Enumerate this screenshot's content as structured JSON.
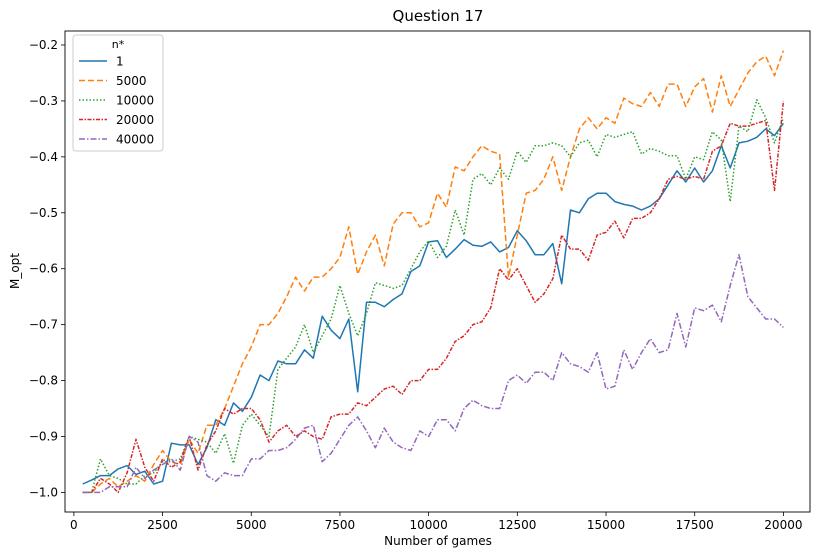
{
  "chart_data": {
    "type": "line",
    "title": "Question 17",
    "xlabel": "Number of games",
    "ylabel": "M_opt",
    "xlim": [
      -250,
      20750
    ],
    "ylim": [
      -1.035,
      -0.175
    ],
    "xticks": [
      0,
      2500,
      5000,
      7500,
      10000,
      12500,
      15000,
      17500,
      20000
    ],
    "yticks": [
      -1.0,
      -0.9,
      -0.8,
      -0.7,
      -0.6,
      -0.5,
      -0.4,
      -0.3,
      -0.2
    ],
    "xtick_labels": [
      "0",
      "2500",
      "5000",
      "7500",
      "10000",
      "12500",
      "15000",
      "17500",
      "20000"
    ],
    "ytick_labels": [
      "−1.0",
      "−0.9",
      "−0.8",
      "−0.7",
      "−0.6",
      "−0.5",
      "−0.4",
      "−0.3",
      "−0.2"
    ],
    "grid": false,
    "legend": {
      "title": "n*",
      "placement": "top-left"
    },
    "x": [
      250,
      500,
      750,
      1000,
      1250,
      1500,
      1750,
      2000,
      2250,
      2500,
      2750,
      3000,
      3250,
      3500,
      3750,
      4000,
      4250,
      4500,
      4750,
      5000,
      5250,
      5500,
      5750,
      6000,
      6250,
      6500,
      6750,
      7000,
      7250,
      7500,
      7750,
      8000,
      8250,
      8500,
      8750,
      9000,
      9250,
      9500,
      9750,
      10000,
      10250,
      10500,
      10750,
      11000,
      11250,
      11500,
      11750,
      12000,
      12250,
      12500,
      12750,
      13000,
      13250,
      13500,
      13750,
      14000,
      14250,
      14500,
      14750,
      15000,
      15250,
      15500,
      15750,
      16000,
      16250,
      16500,
      16750,
      17000,
      17250,
      17500,
      17750,
      18000,
      18250,
      18500,
      18750,
      19000,
      19250,
      19500,
      19750,
      20000
    ],
    "series": [
      {
        "name": "1",
        "color": "#1f77b4",
        "dash": "solid",
        "values": [
          -0.985,
          -0.978,
          -0.97,
          -0.97,
          -0.958,
          -0.952,
          -0.968,
          -0.962,
          -0.985,
          -0.98,
          -0.912,
          -0.915,
          -0.915,
          -0.95,
          -0.92,
          -0.87,
          -0.88,
          -0.84,
          -0.855,
          -0.83,
          -0.79,
          -0.8,
          -0.765,
          -0.77,
          -0.77,
          -0.745,
          -0.76,
          -0.685,
          -0.71,
          -0.725,
          -0.69,
          -0.82,
          -0.66,
          -0.66,
          -0.668,
          -0.655,
          -0.645,
          -0.605,
          -0.595,
          -0.552,
          -0.55,
          -0.58,
          -0.565,
          -0.548,
          -0.558,
          -0.56,
          -0.552,
          -0.57,
          -0.562,
          -0.532,
          -0.55,
          -0.575,
          -0.575,
          -0.555,
          -0.627,
          -0.495,
          -0.5,
          -0.475,
          -0.465,
          -0.465,
          -0.48,
          -0.485,
          -0.488,
          -0.495,
          -0.488,
          -0.475,
          -0.45,
          -0.425,
          -0.445,
          -0.42,
          -0.445,
          -0.425,
          -0.38,
          -0.42,
          -0.375,
          -0.372,
          -0.365,
          -0.35,
          -0.362,
          -0.34
        ]
      },
      {
        "name": "5000",
        "color": "#ff7f0e",
        "dash": "6,3",
        "values": [
          -1.0,
          -1.0,
          -0.985,
          -0.975,
          -0.99,
          -0.98,
          -0.97,
          -0.98,
          -0.95,
          -0.925,
          -0.945,
          -0.95,
          -0.905,
          -0.93,
          -0.88,
          -0.88,
          -0.85,
          -0.81,
          -0.77,
          -0.74,
          -0.7,
          -0.7,
          -0.68,
          -0.65,
          -0.615,
          -0.64,
          -0.615,
          -0.615,
          -0.6,
          -0.58,
          -0.525,
          -0.61,
          -0.57,
          -0.54,
          -0.595,
          -0.52,
          -0.5,
          -0.5,
          -0.525,
          -0.518,
          -0.465,
          -0.49,
          -0.418,
          -0.425,
          -0.4,
          -0.38,
          -0.39,
          -0.395,
          -0.615,
          -0.54,
          -0.465,
          -0.46,
          -0.44,
          -0.4,
          -0.46,
          -0.4,
          -0.35,
          -0.33,
          -0.35,
          -0.33,
          -0.34,
          -0.295,
          -0.305,
          -0.31,
          -0.285,
          -0.31,
          -0.27,
          -0.27,
          -0.31,
          -0.275,
          -0.26,
          -0.32,
          -0.255,
          -0.31,
          -0.28,
          -0.25,
          -0.23,
          -0.22,
          -0.255,
          -0.21
        ]
      },
      {
        "name": "10000",
        "color": "#2ca02c",
        "dash": "1.5,2",
        "values": [
          -1.0,
          -1.0,
          -0.94,
          -0.97,
          -0.975,
          -0.985,
          -0.985,
          -0.97,
          -0.965,
          -0.945,
          -0.945,
          -0.94,
          -0.9,
          -0.905,
          -0.91,
          -0.93,
          -0.895,
          -0.948,
          -0.88,
          -0.86,
          -0.88,
          -0.9,
          -0.78,
          -0.76,
          -0.74,
          -0.7,
          -0.75,
          -0.72,
          -0.69,
          -0.63,
          -0.68,
          -0.72,
          -0.68,
          -0.625,
          -0.63,
          -0.635,
          -0.63,
          -0.6,
          -0.57,
          -0.55,
          -0.58,
          -0.56,
          -0.495,
          -0.54,
          -0.44,
          -0.43,
          -0.45,
          -0.42,
          -0.44,
          -0.39,
          -0.41,
          -0.38,
          -0.38,
          -0.375,
          -0.38,
          -0.4,
          -0.375,
          -0.37,
          -0.4,
          -0.36,
          -0.365,
          -0.36,
          -0.355,
          -0.395,
          -0.385,
          -0.39,
          -0.398,
          -0.398,
          -0.44,
          -0.4,
          -0.405,
          -0.355,
          -0.37,
          -0.48,
          -0.345,
          -0.355,
          -0.298,
          -0.33,
          -0.375,
          -0.33
        ]
      },
      {
        "name": "20000",
        "color": "#d62728",
        "dash": "4,1.5,1.5,1.5",
        "values": [
          -1.0,
          -1.0,
          -0.975,
          -0.985,
          -1.0,
          -0.965,
          -0.905,
          -0.955,
          -0.98,
          -0.94,
          -0.955,
          -0.945,
          -0.9,
          -0.96,
          -0.915,
          -0.89,
          -0.85,
          -0.86,
          -0.85,
          -0.85,
          -0.87,
          -0.91,
          -0.89,
          -0.88,
          -0.9,
          -0.89,
          -0.9,
          -0.905,
          -0.865,
          -0.86,
          -0.86,
          -0.84,
          -0.845,
          -0.83,
          -0.815,
          -0.81,
          -0.825,
          -0.8,
          -0.8,
          -0.78,
          -0.78,
          -0.76,
          -0.73,
          -0.72,
          -0.7,
          -0.695,
          -0.67,
          -0.6,
          -0.62,
          -0.6,
          -0.63,
          -0.66,
          -0.645,
          -0.618,
          -0.54,
          -0.565,
          -0.565,
          -0.585,
          -0.54,
          -0.535,
          -0.515,
          -0.545,
          -0.51,
          -0.51,
          -0.5,
          -0.475,
          -0.44,
          -0.435,
          -0.44,
          -0.435,
          -0.44,
          -0.39,
          -0.38,
          -0.34,
          -0.345,
          -0.345,
          -0.34,
          -0.335,
          -0.46,
          -0.3
        ]
      },
      {
        "name": "40000",
        "color": "#9467bd",
        "dash": "6,2,1.5,2",
        "values": [
          -1.0,
          -1.0,
          -1.0,
          -0.99,
          -0.99,
          -0.99,
          -0.955,
          -0.975,
          -0.96,
          -0.95,
          -0.94,
          -0.96,
          -0.9,
          -0.91,
          -0.97,
          -0.98,
          -0.965,
          -0.97,
          -0.97,
          -0.94,
          -0.94,
          -0.925,
          -0.925,
          -0.92,
          -0.905,
          -0.885,
          -0.88,
          -0.945,
          -0.93,
          -0.905,
          -0.88,
          -0.865,
          -0.89,
          -0.92,
          -0.885,
          -0.91,
          -0.92,
          -0.925,
          -0.89,
          -0.9,
          -0.87,
          -0.87,
          -0.89,
          -0.85,
          -0.835,
          -0.845,
          -0.85,
          -0.85,
          -0.8,
          -0.79,
          -0.805,
          -0.785,
          -0.785,
          -0.8,
          -0.75,
          -0.77,
          -0.775,
          -0.785,
          -0.75,
          -0.815,
          -0.81,
          -0.745,
          -0.78,
          -0.75,
          -0.725,
          -0.75,
          -0.745,
          -0.68,
          -0.74,
          -0.67,
          -0.675,
          -0.665,
          -0.695,
          -0.63,
          -0.575,
          -0.65,
          -0.67,
          -0.69,
          -0.69,
          -0.705
        ]
      }
    ]
  }
}
